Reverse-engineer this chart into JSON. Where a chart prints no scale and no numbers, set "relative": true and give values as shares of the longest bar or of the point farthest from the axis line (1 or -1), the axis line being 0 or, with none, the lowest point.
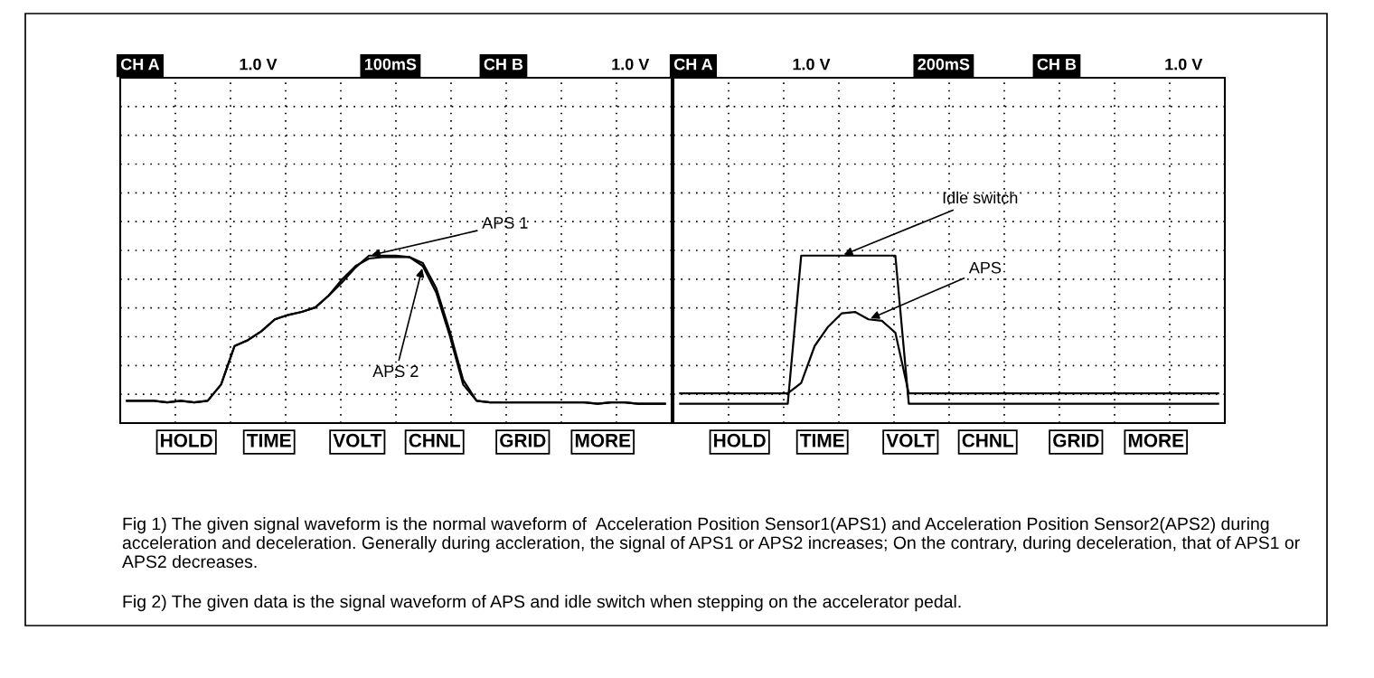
{
  "chart_data": [
    {
      "type": "line",
      "relative": true,
      "grid": true,
      "legend": false,
      "marker": "none",
      "line_style": "solid",
      "categories": [
        null,
        null,
        null,
        null,
        null,
        null,
        null,
        null,
        null,
        null,
        null,
        null,
        null,
        null,
        null,
        null,
        null,
        null,
        null,
        null,
        null,
        null,
        null,
        null,
        null,
        null,
        null,
        null,
        null,
        null,
        null,
        null,
        null,
        null,
        null,
        null,
        null,
        null,
        null,
        null,
        null
      ],
      "series": [
        {
          "name": "APS 1",
          "color": "#000000",
          "values": [
            0.02,
            0.02,
            0.02,
            0.01,
            0.02,
            0.01,
            0.02,
            0.13,
            0.39,
            0.43,
            0.49,
            0.57,
            0.6,
            0.62,
            0.65,
            0.73,
            0.82,
            0.92,
            1,
            1,
            1,
            0.99,
            0.95,
            0.78,
            0.49,
            0.16,
            0.02,
            0.01,
            0.01,
            0.01,
            0.01,
            0.01,
            0.01,
            0.01,
            0.01,
            0,
            0.01,
            0.01,
            0,
            0,
            0
          ]
        },
        {
          "name": "APS 2",
          "color": "#000000",
          "values": [
            0.02,
            0.02,
            0.02,
            0.01,
            0.02,
            0.01,
            0.02,
            0.13,
            0.39,
            0.43,
            0.49,
            0.57,
            0.6,
            0.62,
            0.65,
            0.73,
            0.84,
            0.93,
            0.98,
            0.99,
            0.99,
            0.99,
            0.93,
            0.75,
            0.46,
            0.13,
            0.02,
            0.01,
            0.01,
            0.01,
            0.01,
            0.01,
            0.01,
            0.01,
            0.01,
            0,
            0.01,
            0.01,
            0,
            0,
            0
          ]
        }
      ],
      "annotations": [
        "CH A",
        "1.0 V",
        "100mS",
        "CH B",
        "1.0 V",
        "HOLD",
        "TIME",
        "VOLT",
        "CHNL",
        "GRID",
        "MORE",
        "Fig 1) The given signal waveform is the normal waveform of  Acceleration Position Sensor1(APS1) and Acceleration Position Sensor2(APS2) during acceleration and deceleration. Generally during accleration, the signal of APS1 or APS2 increases; On the contrary, during deceleration, that of APS1 or APS2 decreases."
      ]
    },
    {
      "type": "line",
      "relative": true,
      "grid": true,
      "legend": false,
      "marker": "none",
      "line_style": "solid",
      "categories": [
        null,
        null,
        null,
        null,
        null,
        null,
        null,
        null,
        null,
        null,
        null,
        null,
        null,
        null,
        null,
        null,
        null,
        null,
        null,
        null,
        null,
        null,
        null,
        null,
        null,
        null,
        null,
        null,
        null,
        null,
        null,
        null,
        null,
        null,
        null,
        null,
        null,
        null,
        null,
        null,
        null
      ],
      "series": [
        {
          "name": "Idle switch",
          "color": "#000000",
          "values": [
            0,
            0,
            0,
            0,
            0,
            0,
            0,
            0,
            0,
            1,
            1,
            1,
            1,
            1,
            1,
            1,
            1,
            0,
            0,
            0,
            0,
            0,
            0,
            0,
            0,
            0,
            0,
            0,
            0,
            0,
            0,
            0,
            0,
            0,
            0,
            0,
            0,
            0,
            0,
            0,
            0
          ]
        },
        {
          "name": "APS",
          "color": "#000000",
          "values": [
            0.07,
            0.07,
            0.07,
            0.07,
            0.07,
            0.07,
            0.07,
            0.07,
            0.07,
            0.14,
            0.39,
            0.52,
            0.61,
            0.62,
            0.57,
            0.56,
            0.48,
            0.07,
            0.07,
            0.07,
            0.07,
            0.07,
            0.07,
            0.07,
            0.07,
            0.07,
            0.07,
            0.07,
            0.07,
            0.07,
            0.07,
            0.07,
            0.07,
            0.07,
            0.07,
            0.07,
            0.07,
            0.07,
            0.07,
            0.07,
            0.07
          ]
        }
      ],
      "annotations": [
        "CH A",
        "1.0 V",
        "200mS",
        "CH B",
        "1.0 V",
        "HOLD",
        "TIME",
        "VOLT",
        "CHNL",
        "GRID",
        "MORE",
        "Fig 2) The given data is the signal waveform of APS and idle switch when stepping on the accelerator pedal."
      ]
    }
  ]
}
